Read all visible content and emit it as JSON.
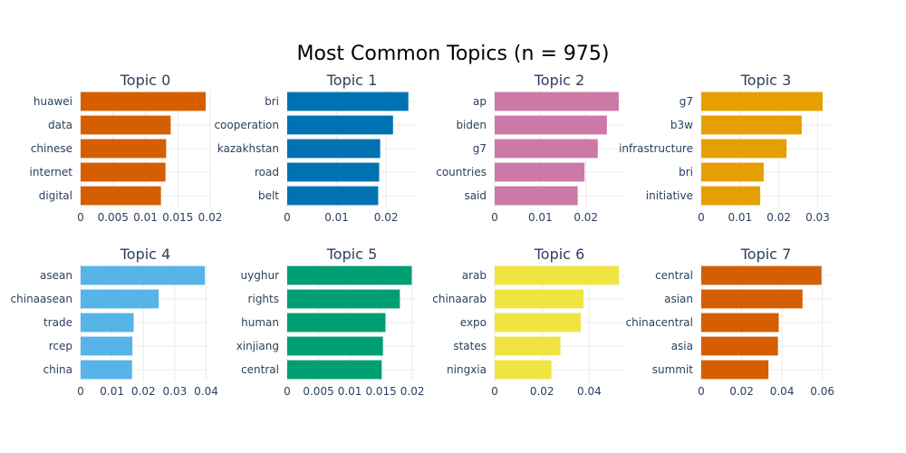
{
  "chart_data": {
    "title": "Most Common Topics (n = 975)",
    "type": "bar",
    "orientation": "horizontal",
    "grid": true,
    "panels": [
      {
        "title": "Topic 0",
        "color": "#D55E00",
        "categories": [
          "huawei",
          "data",
          "chinese",
          "internet",
          "digital"
        ],
        "values": [
          0.0193,
          0.0139,
          0.0132,
          0.0131,
          0.0124
        ],
        "xlim": [
          0,
          0.02
        ],
        "ticks": [
          0,
          0.005,
          0.01,
          0.015,
          0.02
        ],
        "tick_labels": [
          "0",
          "0.005",
          "0.01",
          "0.015",
          "0.02"
        ]
      },
      {
        "title": "Topic 1",
        "color": "#0072B2",
        "categories": [
          "bri",
          "cooperation",
          "kazakhstan",
          "road",
          "belt"
        ],
        "values": [
          0.0245,
          0.0214,
          0.0188,
          0.0186,
          0.0184
        ],
        "xlim": [
          0,
          0.0262
        ],
        "ticks": [
          0,
          0.01,
          0.02
        ],
        "tick_labels": [
          "0",
          "0.01",
          "0.02"
        ]
      },
      {
        "title": "Topic 2",
        "color": "#CC79A7",
        "categories": [
          "ap",
          "biden",
          "g7",
          "countries",
          "said"
        ],
        "values": [
          0.0272,
          0.0246,
          0.0226,
          0.0197,
          0.0182
        ],
        "xlim": [
          0,
          0.0284
        ],
        "ticks": [
          0,
          0.01,
          0.02
        ],
        "tick_labels": [
          "0",
          "0.01",
          "0.02"
        ]
      },
      {
        "title": "Topic 3",
        "color": "#E69F00",
        "categories": [
          "g7",
          "b3w",
          "infrastructure",
          "bri",
          "initiative"
        ],
        "values": [
          0.0313,
          0.0259,
          0.022,
          0.0161,
          0.0152
        ],
        "xlim": [
          0,
          0.0334
        ],
        "ticks": [
          0,
          0.01,
          0.02,
          0.03
        ],
        "tick_labels": [
          "0",
          "0.01",
          "0.02",
          "0.03"
        ]
      },
      {
        "title": "Topic 4",
        "color": "#56B4E9",
        "categories": [
          "asean",
          "chinaasean",
          "trade",
          "rcep",
          "china"
        ],
        "values": [
          0.0396,
          0.0249,
          0.0169,
          0.0165,
          0.0164
        ],
        "xlim": [
          0,
          0.0413
        ],
        "ticks": [
          0,
          0.01,
          0.02,
          0.03,
          0.04
        ],
        "tick_labels": [
          "0",
          "0.01",
          "0.02",
          "0.03",
          "0.04"
        ]
      },
      {
        "title": "Topic 5",
        "color": "#009E73",
        "categories": [
          "uyghur",
          "rights",
          "human",
          "xinjiang",
          "central"
        ],
        "values": [
          0.0199,
          0.018,
          0.0157,
          0.0153,
          0.0151
        ],
        "xlim": [
          0,
          0.0207
        ],
        "ticks": [
          0,
          0.005,
          0.01,
          0.015,
          0.02
        ],
        "tick_labels": [
          "0",
          "0.005",
          "0.01",
          "0.015",
          "0.02"
        ]
      },
      {
        "title": "Topic 6",
        "color": "#F0E442",
        "categories": [
          "arab",
          "chinaarab",
          "expo",
          "states",
          "ningxia"
        ],
        "values": [
          0.0526,
          0.0376,
          0.0364,
          0.0278,
          0.024
        ],
        "xlim": [
          0,
          0.0548
        ],
        "ticks": [
          0,
          0.02,
          0.04
        ],
        "tick_labels": [
          "0",
          "0.02",
          "0.04"
        ]
      },
      {
        "title": "Topic 7",
        "color": "#D55E00",
        "categories": [
          "central",
          "asian",
          "chinacentral",
          "asia",
          "summit"
        ],
        "values": [
          0.0596,
          0.0502,
          0.0384,
          0.038,
          0.0333
        ],
        "xlim": [
          0,
          0.0642
        ],
        "ticks": [
          0,
          0.02,
          0.04,
          0.06
        ],
        "tick_labels": [
          "0",
          "0.02",
          "0.04",
          "0.06"
        ]
      }
    ]
  }
}
